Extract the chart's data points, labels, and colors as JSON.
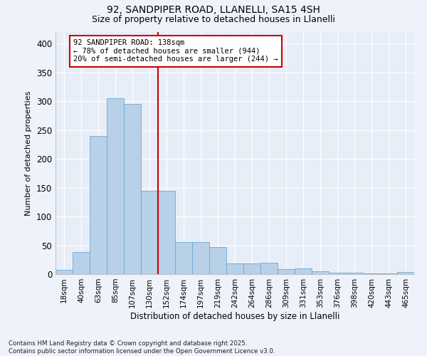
{
  "title1": "92, SANDPIPER ROAD, LLANELLI, SA15 4SH",
  "title2": "Size of property relative to detached houses in Llanelli",
  "xlabel": "Distribution of detached houses by size in Llanelli",
  "ylabel": "Number of detached properties",
  "bin_labels": [
    "18sqm",
    "40sqm",
    "63sqm",
    "85sqm",
    "107sqm",
    "130sqm",
    "152sqm",
    "174sqm",
    "197sqm",
    "219sqm",
    "242sqm",
    "264sqm",
    "286sqm",
    "309sqm",
    "331sqm",
    "353sqm",
    "376sqm",
    "398sqm",
    "420sqm",
    "443sqm",
    "465sqm"
  ],
  "bar_values": [
    7,
    38,
    240,
    305,
    295,
    144,
    144,
    56,
    56,
    47,
    19,
    19,
    20,
    9,
    10,
    5,
    3,
    3,
    1,
    1,
    4
  ],
  "bar_color": "#b8d0e8",
  "bar_edge_color": "#6aaad4",
  "vline_color": "#cc0000",
  "annotation_text": "92 SANDPIPER ROAD: 138sqm\n← 78% of detached houses are smaller (944)\n20% of semi-detached houses are larger (244) →",
  "annotation_box_color": "#cc0000",
  "footnote": "Contains HM Land Registry data © Crown copyright and database right 2025.\nContains public sector information licensed under the Open Government Licence v3.0.",
  "ylim": [
    0,
    420
  ],
  "yticks": [
    0,
    50,
    100,
    150,
    200,
    250,
    300,
    350,
    400
  ],
  "background_color": "#eef2fa",
  "plot_background_color": "#e8eef8"
}
